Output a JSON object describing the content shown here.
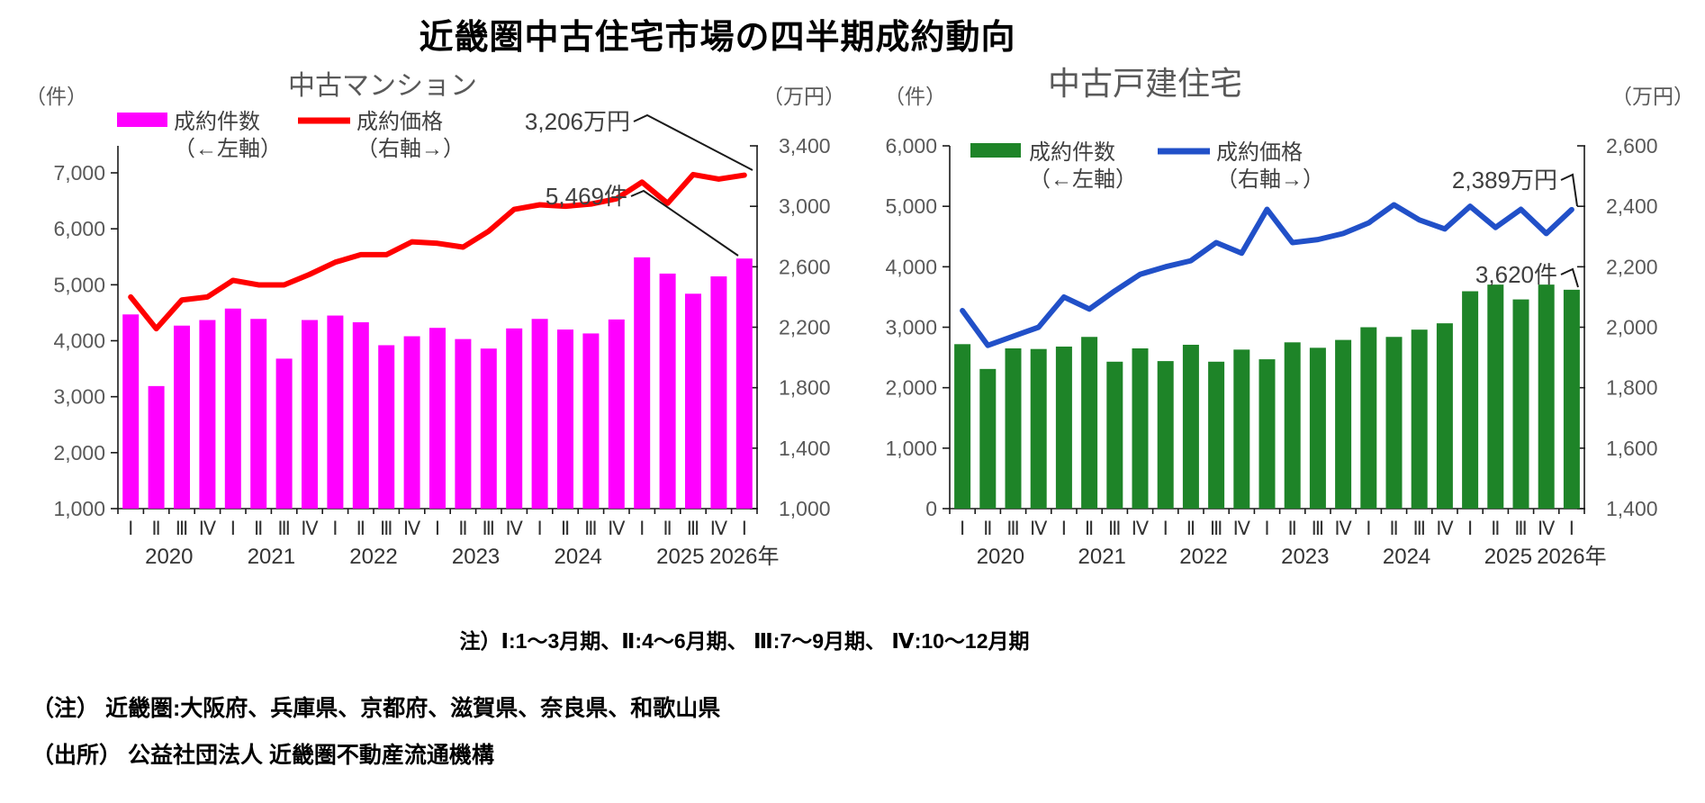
{
  "title": "近畿圏中古住宅市場の四半期成約動向",
  "notes": {
    "quarter": "注）Ⅰ:1～3月期、Ⅱ:4～6月期、 Ⅲ:7～9月期、 Ⅳ:10～12月期",
    "region": "（注） 近畿圏:大阪府、兵庫県、京都府、滋賀県、奈良県、和歌山県",
    "source": "（出所） 公益社団法人 近畿圏不動産流通機構"
  },
  "chart_data": [
    {
      "type": "bar+line",
      "title": "中古マンション",
      "bar_series": {
        "name": "成約件数",
        "axis_note": "（←左軸）",
        "unit": "件",
        "color": "#FF00FF"
      },
      "line_series": {
        "name": "成約価格",
        "axis_note": "（右軸→）",
        "unit": "万円",
        "color": "#FF0000"
      },
      "left_axis": {
        "unit_label": "（件）",
        "min": 1000,
        "max": 7000,
        "step": 1000
      },
      "right_axis": {
        "unit_label": "（万円）",
        "min": 1000,
        "max": 3400,
        "step": 400
      },
      "x": {
        "years": [
          {
            "label": "2020",
            "quarters": 4
          },
          {
            "label": "2021",
            "quarters": 4
          },
          {
            "label": "2022",
            "quarters": 4
          },
          {
            "label": "2023",
            "quarters": 4
          },
          {
            "label": "2024",
            "quarters": 4
          },
          {
            "label": "2025",
            "quarters": 4
          },
          {
            "label": "2026",
            "quarters": 1
          }
        ],
        "quarter_labels": [
          "Ⅰ",
          "Ⅱ",
          "Ⅲ",
          "Ⅳ"
        ],
        "last_year_suffix": "年"
      },
      "bars": [
        4470,
        3190,
        4270,
        4370,
        4575,
        4390,
        3680,
        4370,
        4450,
        4330,
        3920,
        4080,
        4230,
        4030,
        3860,
        4220,
        4390,
        4200,
        4130,
        4380,
        5490,
        5200,
        4840,
        5150,
        5469
      ],
      "line": [
        2400,
        2190,
        2380,
        2400,
        2510,
        2480,
        2480,
        2550,
        2630,
        2680,
        2680,
        2765,
        2755,
        2730,
        2835,
        2980,
        3010,
        3000,
        3015,
        3050,
        3160,
        3020,
        3210,
        3180,
        3206
      ],
      "annotations": [
        {
          "text": "3,206万円",
          "points_to": "price-line-end"
        },
        {
          "text": "5,469件",
          "points_to": "bar-series-end"
        }
      ]
    },
    {
      "type": "bar+line",
      "title": "中古戸建住宅",
      "bar_series": {
        "name": "成約件数",
        "axis_note": "（←左軸）",
        "unit": "件",
        "color": "#1E8428"
      },
      "line_series": {
        "name": "成約価格",
        "axis_note": "（右軸→）",
        "unit": "万円",
        "color": "#2150C8"
      },
      "left_axis": {
        "unit_label": "（件）",
        "min": 0,
        "max": 6000,
        "step": 1000
      },
      "right_axis": {
        "unit_label": "（万円）",
        "min": 1400,
        "max": 2600,
        "step": 200
      },
      "x": {
        "years": [
          {
            "label": "2020",
            "quarters": 4
          },
          {
            "label": "2021",
            "quarters": 4
          },
          {
            "label": "2022",
            "quarters": 4
          },
          {
            "label": "2023",
            "quarters": 4
          },
          {
            "label": "2024",
            "quarters": 4
          },
          {
            "label": "2025",
            "quarters": 4
          },
          {
            "label": "2026",
            "quarters": 1
          }
        ],
        "quarter_labels": [
          "Ⅰ",
          "Ⅱ",
          "Ⅲ",
          "Ⅳ"
        ],
        "last_year_suffix": "年"
      },
      "bars": [
        2720,
        2310,
        2650,
        2640,
        2680,
        2840,
        2430,
        2650,
        2440,
        2710,
        2430,
        2630,
        2470,
        2750,
        2660,
        2790,
        3000,
        2840,
        2960,
        3065,
        3595,
        3705,
        3460,
        3705,
        3620
      ],
      "line": [
        2055,
        1940,
        1970,
        2000,
        2100,
        2060,
        2120,
        2175,
        2200,
        2220,
        2280,
        2245,
        2390,
        2280,
        2290,
        2310,
        2345,
        2405,
        2355,
        2325,
        2400,
        2330,
        2390,
        2310,
        2389
      ],
      "annotations": [
        {
          "text": "2,389万円",
          "points_to": "price-line-end"
        },
        {
          "text": "3,620件",
          "points_to": "bar-series-end"
        }
      ]
    }
  ]
}
